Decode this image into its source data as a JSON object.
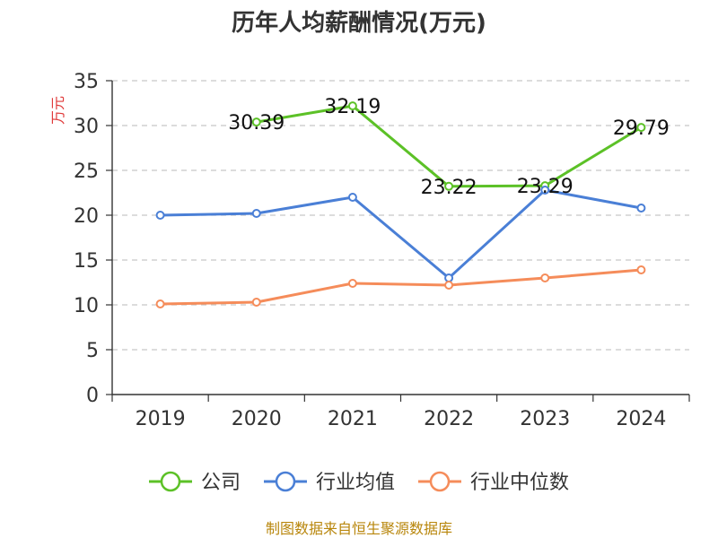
{
  "chart_data": {
    "type": "line",
    "title": "历年人均薪酬情况(万元)",
    "xlabel": "",
    "ylabel": "万元",
    "categories": [
      "2019",
      "2020",
      "2021",
      "2022",
      "2023",
      "2024"
    ],
    "ylim": [
      0,
      35
    ],
    "yticks": [
      0,
      5,
      10,
      15,
      20,
      25,
      30,
      35
    ],
    "ytick_labels": [
      "0",
      "5",
      "10",
      "15",
      "20",
      "25",
      "30",
      "35"
    ],
    "grid": true,
    "legend_position": "bottom",
    "series": [
      {
        "name": "公司",
        "color": "#5cc127",
        "values": [
          null,
          30.39,
          32.19,
          23.22,
          23.29,
          29.79
        ],
        "data_labels": [
          "",
          "30.39",
          "32.19",
          "23.22",
          "23.29",
          "29.79"
        ]
      },
      {
        "name": "行业均值",
        "color": "#4a7fd6",
        "values": [
          20.0,
          20.2,
          22.0,
          13.0,
          22.8,
          20.8
        ],
        "data_labels": []
      },
      {
        "name": "行业中位数",
        "color": "#f58c5a",
        "values": [
          10.1,
          10.3,
          12.4,
          12.2,
          13.0,
          13.9
        ],
        "data_labels": []
      }
    ]
  },
  "footer": {
    "source": "制图数据来自恒生聚源数据库"
  }
}
